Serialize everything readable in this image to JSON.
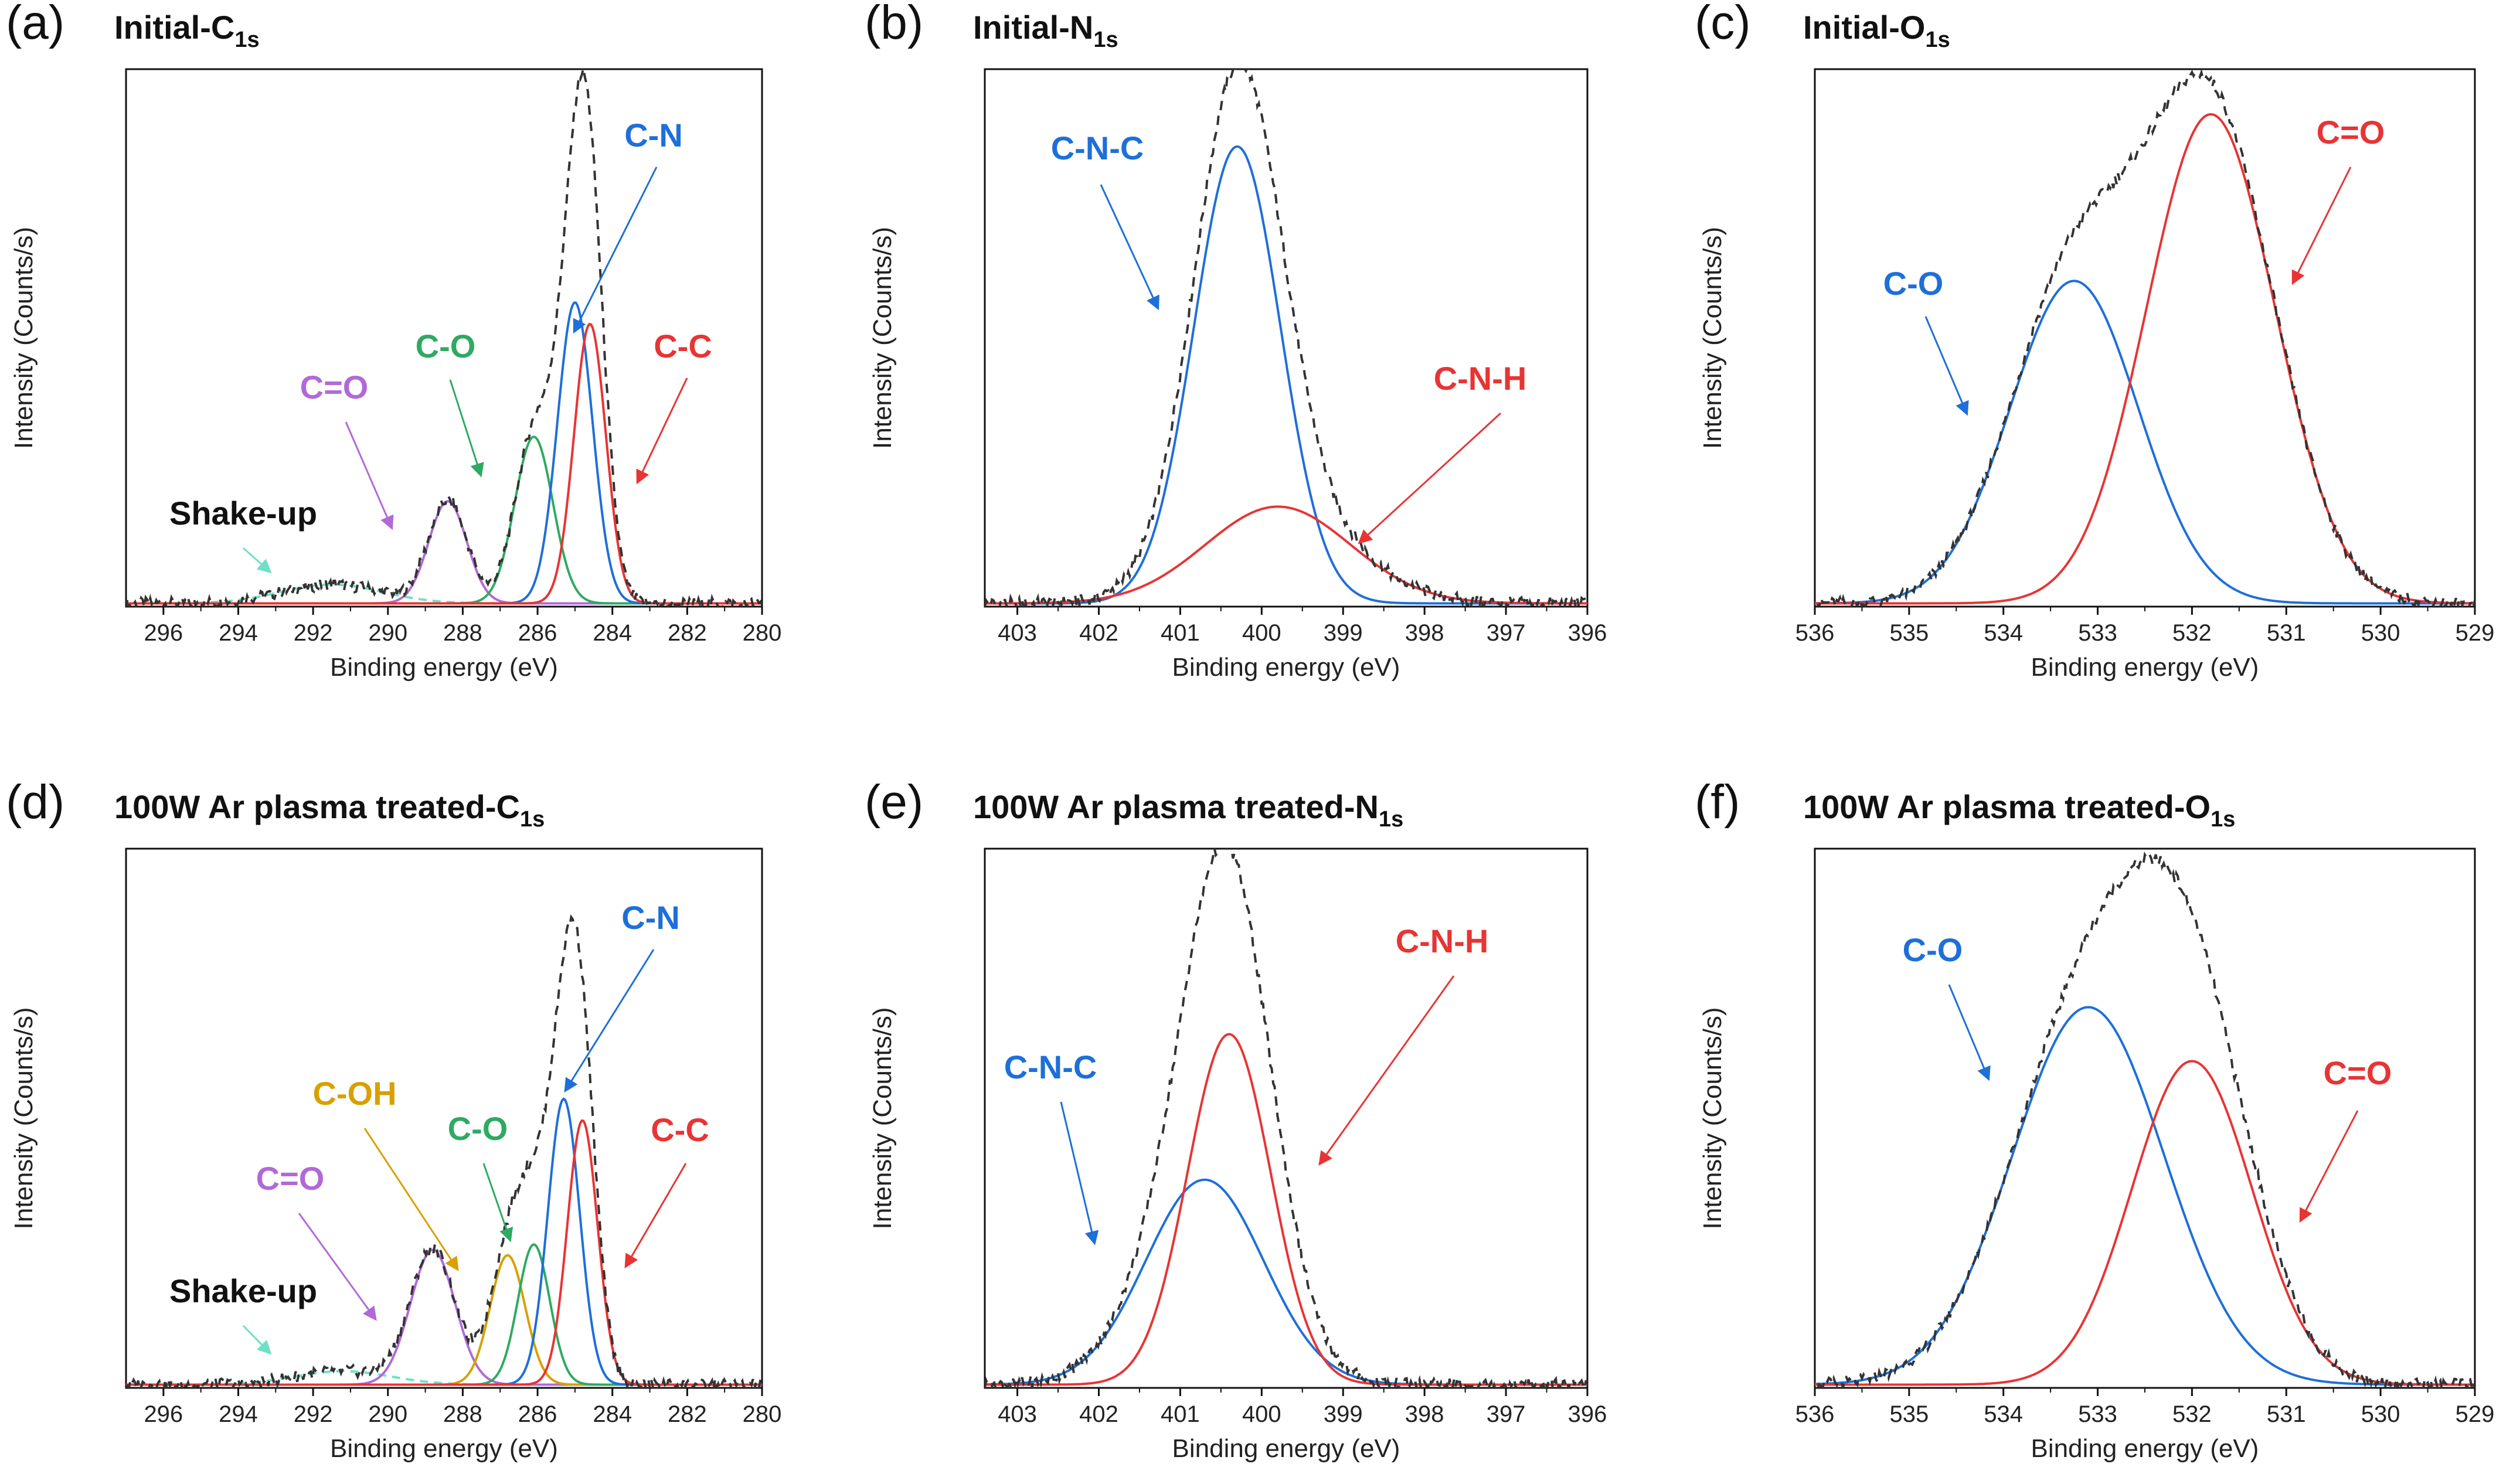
{
  "chart_data": [
    {
      "panel": "(a)",
      "title": "Initial-C",
      "title_sub": "1s",
      "type": "line",
      "xlabel": "Binding energy (eV)",
      "ylabel": "Intensity (Counts/s)",
      "xlim": [
        297,
        280
      ],
      "ylim": [
        0,
        100
      ],
      "xticks": [
        296,
        294,
        292,
        290,
        288,
        286,
        284,
        282,
        280
      ],
      "envelope": {
        "name": "Envelope",
        "color": "#333333",
        "dashed": true
      },
      "series": [
        {
          "name": "Shake-up",
          "color": "#6ee0c6",
          "dashed": true,
          "center": 291.5,
          "fwhm": 3.2,
          "height": 3.5,
          "label_color": "#111111"
        },
        {
          "name": "C=O",
          "color": "#b06ad8",
          "center": 288.4,
          "fwhm": 1.2,
          "height": 19
        },
        {
          "name": "C-O",
          "color": "#2eaa62",
          "center": 286.1,
          "fwhm": 1.2,
          "height": 31
        },
        {
          "name": "C-N",
          "color": "#1e6fd9",
          "center": 285.0,
          "fwhm": 1.1,
          "height": 56
        },
        {
          "name": "C-C",
          "color": "#e83434",
          "center": 284.6,
          "fwhm": 1.0,
          "height": 52
        }
      ]
    },
    {
      "panel": "(b)",
      "title": "Initial-N",
      "title_sub": "1s",
      "type": "line",
      "xlabel": "Binding energy (eV)",
      "ylabel": "Intensity (Counts/s)",
      "xlim": [
        403.4,
        396
      ],
      "ylim": [
        0,
        100
      ],
      "xticks": [
        403,
        402,
        401,
        400,
        399,
        398,
        397,
        396
      ],
      "envelope": {
        "name": "Envelope",
        "color": "#333333",
        "dashed": true
      },
      "series": [
        {
          "name": "C-N-C",
          "color": "#1e6fd9",
          "center": 400.3,
          "fwhm": 1.25,
          "height": 85
        },
        {
          "name": "C-N-H",
          "color": "#e83434",
          "center": 399.8,
          "fwhm": 2.1,
          "height": 18
        }
      ]
    },
    {
      "panel": "(c)",
      "title": "Initial-O",
      "title_sub": "1s",
      "type": "line",
      "xlabel": "Binding energy (eV)",
      "ylabel": "Intensity (Counts/s)",
      "xlim": [
        536,
        529
      ],
      "ylim": [
        0,
        100
      ],
      "xticks": [
        536,
        535,
        534,
        533,
        532,
        531,
        530,
        529
      ],
      "envelope": {
        "name": "Envelope",
        "color": "#333333",
        "dashed": true
      },
      "series": [
        {
          "name": "C-O",
          "color": "#1e6fd9",
          "center": 533.25,
          "fwhm": 1.6,
          "height": 60
        },
        {
          "name": "C=O",
          "color": "#e83434",
          "center": 531.8,
          "fwhm": 1.6,
          "height": 91
        }
      ]
    },
    {
      "panel": "(d)",
      "title": "100W Ar plasma treated-C",
      "title_sub": "1s",
      "type": "line",
      "xlabel": "Binding energy (eV)",
      "ylabel": "Intensity (Counts/s)",
      "xlim": [
        297,
        280
      ],
      "ylim": [
        0,
        100
      ],
      "xticks": [
        296,
        294,
        292,
        290,
        288,
        286,
        284,
        282,
        280
      ],
      "envelope": {
        "name": "Envelope",
        "color": "#333333",
        "dashed": true
      },
      "series": [
        {
          "name": "Shake-up",
          "color": "#6ee0c6",
          "dashed": true,
          "center": 291.2,
          "fwhm": 3.0,
          "height": 2.5,
          "label_color": "#111111"
        },
        {
          "name": "C=O",
          "color": "#b06ad8",
          "center": 288.8,
          "fwhm": 1.4,
          "height": 25
        },
        {
          "name": "C-OH",
          "color": "#d8a000",
          "center": 286.8,
          "fwhm": 1.1,
          "height": 24
        },
        {
          "name": "C-O",
          "color": "#2eaa62",
          "center": 286.1,
          "fwhm": 1.0,
          "height": 26
        },
        {
          "name": "C-N",
          "color": "#1e6fd9",
          "center": 285.3,
          "fwhm": 1.0,
          "height": 53
        },
        {
          "name": "C-C",
          "color": "#e83434",
          "center": 284.8,
          "fwhm": 0.95,
          "height": 49
        }
      ]
    },
    {
      "panel": "(e)",
      "title": "100W Ar plasma treated-N",
      "title_sub": "1s",
      "type": "line",
      "xlabel": "Binding energy (eV)",
      "ylabel": "Intensity (Counts/s)",
      "xlim": [
        403.4,
        396
      ],
      "ylim": [
        0,
        100
      ],
      "xticks": [
        403,
        402,
        401,
        400,
        399,
        398,
        397,
        396
      ],
      "envelope": {
        "name": "Envelope",
        "color": "#333333",
        "dashed": true
      },
      "series": [
        {
          "name": "C-N-C",
          "color": "#1e6fd9",
          "center": 400.7,
          "fwhm": 1.7,
          "height": 38
        },
        {
          "name": "C-N-H",
          "color": "#e83434",
          "center": 400.4,
          "fwhm": 1.2,
          "height": 65
        }
      ]
    },
    {
      "panel": "(f)",
      "title": "100W Ar plasma treated-O",
      "title_sub": "1s",
      "type": "line",
      "xlabel": "Binding energy (eV)",
      "ylabel": "Intensity (Counts/s)",
      "xlim": [
        536,
        529
      ],
      "ylim": [
        0,
        100
      ],
      "xticks": [
        536,
        535,
        534,
        533,
        532,
        531,
        530,
        529
      ],
      "envelope": {
        "name": "Envelope",
        "color": "#333333",
        "dashed": true
      },
      "series": [
        {
          "name": "C-O",
          "color": "#1e6fd9",
          "center": 533.1,
          "fwhm": 1.9,
          "height": 70
        },
        {
          "name": "C=O",
          "color": "#e83434",
          "center": 532.0,
          "fwhm": 1.5,
          "height": 60
        }
      ]
    }
  ]
}
